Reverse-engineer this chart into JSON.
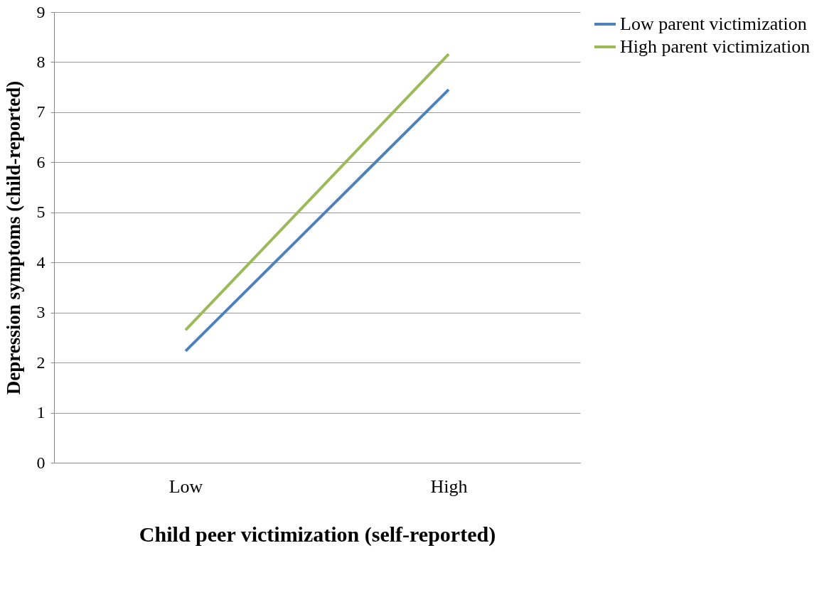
{
  "chart_data": {
    "type": "line",
    "xlabel": "Child peer victimization (self-reported)",
    "ylabel": "Depression symptoms (child-reported)",
    "categories": [
      "Low",
      "High"
    ],
    "series": [
      {
        "name": "Low parent victimization",
        "color": "#4f81bd",
        "values": [
          2.23,
          7.45
        ]
      },
      {
        "name": "High parent victimization",
        "color": "#9bbb59",
        "values": [
          2.65,
          8.16
        ]
      }
    ],
    "ylim": [
      0,
      9
    ],
    "yticks": [
      0,
      1,
      2,
      3,
      4,
      5,
      6,
      7,
      8,
      9
    ],
    "grid": "y",
    "legend": "right",
    "marker": "none",
    "line_style": "solid"
  }
}
